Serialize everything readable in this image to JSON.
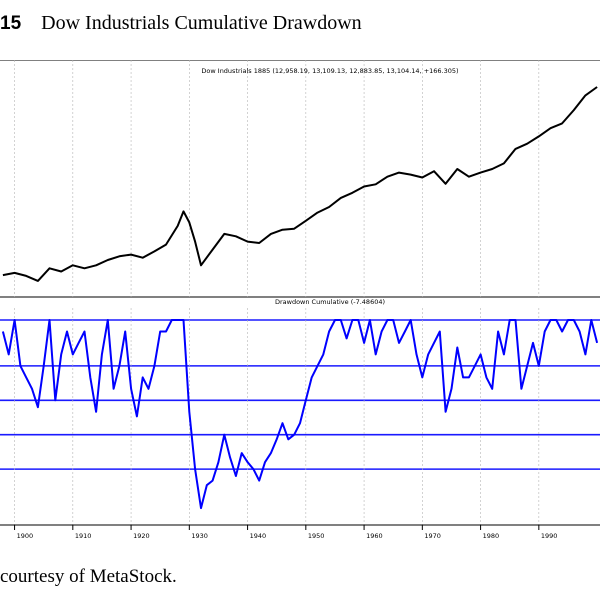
{
  "figure": {
    "number": "15",
    "title": "Dow Industrials Cumulative Drawdown",
    "caption": "courtesy of MetaStock."
  },
  "chart_data": [
    {
      "type": "line",
      "title": "Dow Industrials 1885 (12,958.19, 13,109.13, 12,883.85, 13,104.14, +166.305)",
      "y_scale": "log",
      "color": "#000000",
      "grid": "vertical",
      "x": [
        1898,
        1900,
        1902,
        1904,
        1906,
        1908,
        1910,
        1912,
        1914,
        1916,
        1918,
        1920,
        1922,
        1924,
        1926,
        1928,
        1929,
        1930,
        1931,
        1932,
        1934,
        1936,
        1938,
        1940,
        1942,
        1944,
        1946,
        1948,
        1950,
        1952,
        1954,
        1956,
        1958,
        1960,
        1962,
        1964,
        1966,
        1968,
        1970,
        1972,
        1974,
        1976,
        1978,
        1980,
        1982,
        1984,
        1986,
        1988,
        1990,
        1992,
        1994,
        1996,
        1998,
        2000
      ],
      "y": [
        45,
        48,
        44,
        38,
        55,
        50,
        60,
        55,
        60,
        70,
        78,
        82,
        75,
        90,
        110,
        190,
        290,
        210,
        120,
        60,
        95,
        150,
        140,
        120,
        115,
        150,
        170,
        175,
        220,
        280,
        330,
        430,
        500,
        600,
        640,
        800,
        900,
        850,
        780,
        940,
        650,
        1000,
        800,
        900,
        1000,
        1180,
        1800,
        2100,
        2600,
        3300,
        3800,
        5600,
        8600,
        11000
      ]
    },
    {
      "type": "line",
      "title": "Drawdown Cumulative (-7.48604)",
      "color": "#0000ff",
      "ylim": [
        -85,
        0
      ],
      "reference_lines": [
        0,
        -20,
        -35,
        -50,
        -65
      ],
      "x": [
        1898,
        1899,
        1900,
        1901,
        1902,
        1903,
        1904,
        1905,
        1906,
        1907,
        1908,
        1909,
        1910,
        1911,
        1912,
        1913,
        1914,
        1915,
        1916,
        1917,
        1918,
        1919,
        1920,
        1921,
        1922,
        1923,
        1924,
        1925,
        1926,
        1927,
        1928,
        1929,
        1930,
        1931,
        1932,
        1933,
        1934,
        1935,
        1936,
        1937,
        1938,
        1939,
        1940,
        1941,
        1942,
        1943,
        1944,
        1945,
        1946,
        1947,
        1948,
        1949,
        1950,
        1951,
        1952,
        1953,
        1954,
        1955,
        1956,
        1957,
        1958,
        1959,
        1960,
        1961,
        1962,
        1963,
        1964,
        1965,
        1966,
        1967,
        1968,
        1969,
        1970,
        1971,
        1972,
        1973,
        1974,
        1975,
        1976,
        1977,
        1978,
        1979,
        1980,
        1981,
        1982,
        1983,
        1984,
        1985,
        1986,
        1987,
        1988,
        1989,
        1990,
        1991,
        1992,
        1993,
        1994,
        1995,
        1996,
        1997,
        1998,
        1999,
        2000
      ],
      "y": [
        -5,
        -15,
        0,
        -20,
        -25,
        -30,
        -38,
        -20,
        0,
        -35,
        -15,
        -5,
        -15,
        -10,
        -5,
        -25,
        -40,
        -15,
        0,
        -30,
        -20,
        -5,
        -30,
        -42,
        -25,
        -30,
        -20,
        -5,
        -5,
        0,
        0,
        0,
        -40,
        -65,
        -82,
        -72,
        -70,
        -62,
        -50,
        -60,
        -68,
        -58,
        -62,
        -65,
        -70,
        -62,
        -58,
        -52,
        -45,
        -52,
        -50,
        -45,
        -35,
        -25,
        -20,
        -15,
        -5,
        0,
        0,
        -8,
        0,
        0,
        -10,
        0,
        -15,
        -5,
        0,
        0,
        -10,
        -5,
        0,
        -15,
        -25,
        -15,
        -10,
        -5,
        -40,
        -30,
        -12,
        -25,
        -25,
        -20,
        -15,
        -25,
        -30,
        -5,
        -15,
        0,
        0,
        -30,
        -20,
        -10,
        -20,
        -5,
        0,
        0,
        -5,
        0,
        0,
        -5,
        -15,
        0,
        -10
      ]
    }
  ],
  "x_axis": {
    "ticks": [
      "1900",
      "1910",
      "1920",
      "1930",
      "1940",
      "1950",
      "1960",
      "1970",
      "1980",
      "1990"
    ]
  }
}
